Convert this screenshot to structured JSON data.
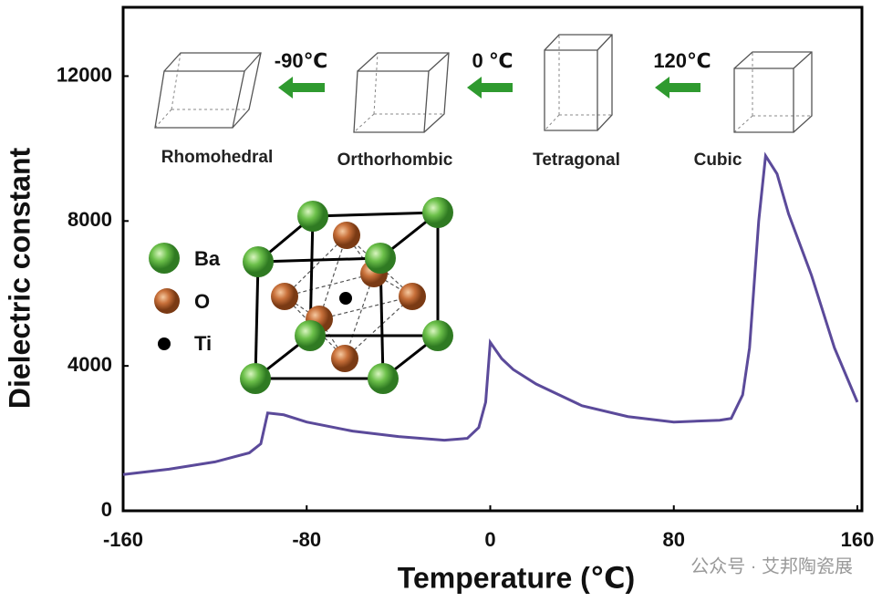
{
  "chart_data": {
    "type": "line",
    "x_label": "Temperature (℃)",
    "y_label": "Dielectric constant",
    "x": [
      -160,
      -140,
      -120,
      -105,
      -100,
      -97,
      -90,
      -80,
      -60,
      -40,
      -20,
      -10,
      -5,
      -2,
      0,
      5,
      10,
      20,
      40,
      60,
      80,
      100,
      105,
      110,
      113,
      117,
      120,
      125,
      130,
      140,
      150,
      160
    ],
    "series": [
      {
        "color": "#5b4a9a",
        "values": [
          1000,
          1150,
          1350,
          1600,
          1850,
          2700,
          2650,
          2450,
          2200,
          2050,
          1950,
          2000,
          2300,
          3000,
          4650,
          4200,
          3900,
          3500,
          2900,
          2600,
          2450,
          2500,
          2550,
          3200,
          4500,
          8000,
          9800,
          9300,
          8200,
          6500,
          4500,
          3000
        ]
      }
    ],
    "xlim": [
      -160,
      160
    ],
    "xticks": [
      -160,
      -80,
      0,
      80,
      160
    ],
    "ylim": [
      0,
      13900
    ],
    "yticks": [
      0,
      4000,
      8000,
      12000
    ],
    "grid": false,
    "phases": [
      "Rhomohedral",
      "Orthorhombic",
      "Tetragonal",
      "Cubic"
    ],
    "transitions": [
      "-90℃",
      "0 ℃",
      "120℃"
    ],
    "atoms": [
      "Ba",
      "O",
      "Ti"
    ],
    "watermark": "公众号 · 艾邦陶瓷展"
  }
}
